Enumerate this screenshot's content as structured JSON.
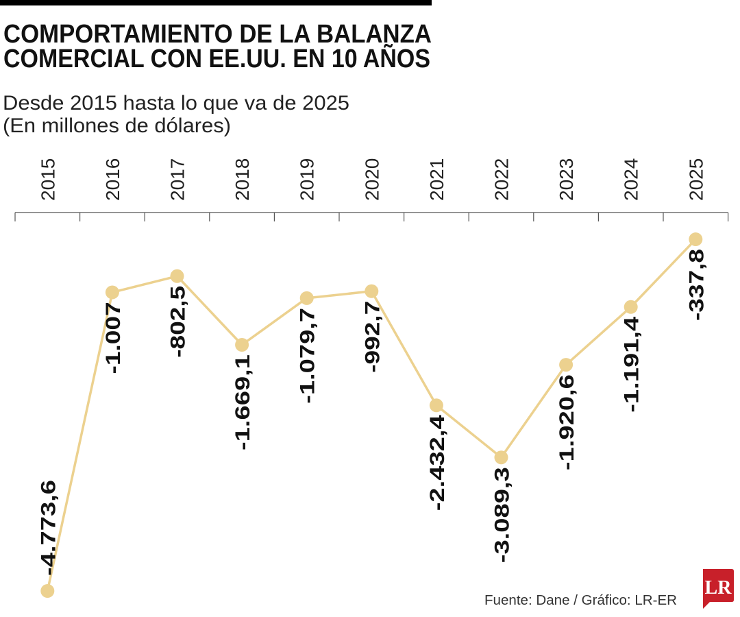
{
  "title_lines": [
    "COMPORTAMIENTO DE LA BALANZA",
    "COMERCIAL CON EE.UU. EN 10 AÑOS"
  ],
  "subtitle_lines": [
    "Desde 2015 hasta lo que va de 2025",
    "(En millones de dólares)"
  ],
  "source": "Fuente: Dane / Gráfico: LR-ER",
  "logo_text": "LR",
  "colors": {
    "line": "#ecd18f",
    "logo": "#c8202a",
    "bar": "#000000"
  },
  "chart_data": {
    "type": "line",
    "title": "COMPORTAMIENTO DE LA BALANZA COMERCIAL CON EE.UU. EN 10 AÑOS",
    "subtitle": "Desde 2015 hasta lo que va de 2025 (En millones de dólares)",
    "categories": [
      "2015",
      "2016",
      "2017",
      "2018",
      "2019",
      "2020",
      "2021",
      "2022",
      "2023",
      "2024",
      "2025"
    ],
    "values": [
      -4773.6,
      -1007,
      -802.5,
      -1669.1,
      -1079.7,
      -992.7,
      -2432.4,
      -3089.3,
      -1920.6,
      -1191.4,
      -337.8
    ],
    "labels": [
      "-4.773,6",
      "-1.007",
      "-802,5",
      "-1.669,1",
      "-1.079,7",
      "-992,7",
      "-2.432,4",
      "-3.089,3",
      "-1.920,6",
      "-1.191,4",
      "-337,8"
    ],
    "ylim": [
      -4773.6,
      0
    ],
    "axis_position": "top",
    "grid": false,
    "legend": "none"
  }
}
